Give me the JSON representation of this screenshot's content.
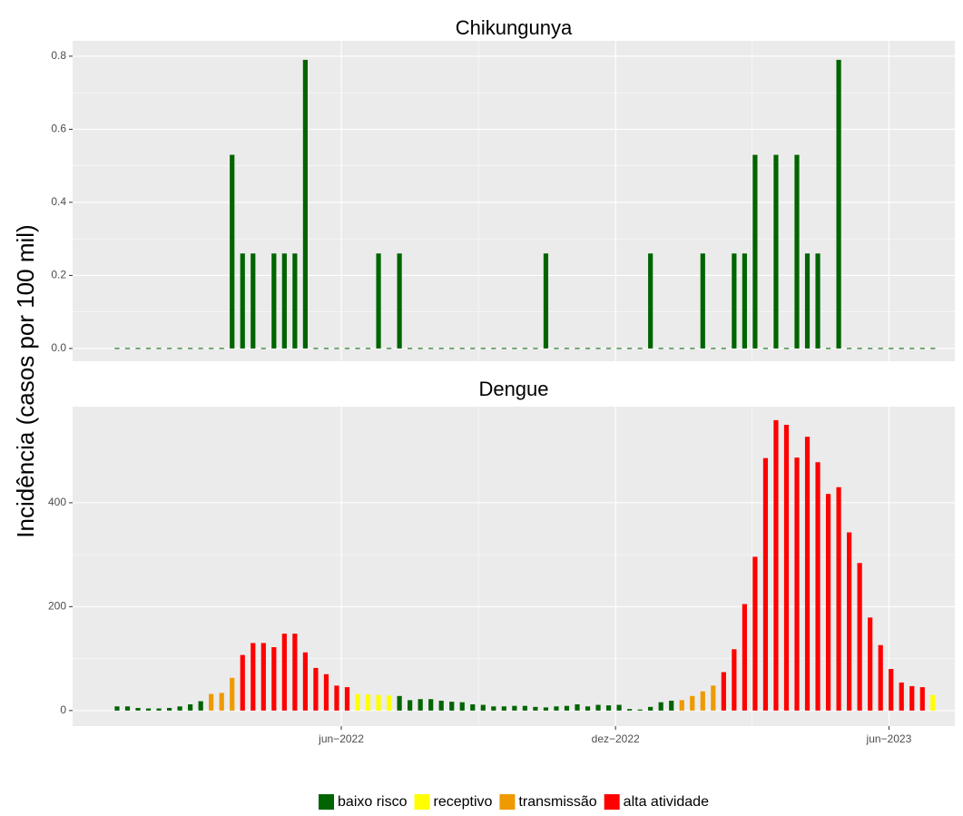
{
  "y_label": "Incidência (casos por 100 mil)",
  "legend": "bottom",
  "chart_data": [
    {
      "type": "bar",
      "title": "Chikungunya",
      "categories": [
        null,
        null,
        null,
        null,
        null,
        null,
        null,
        null,
        null,
        null,
        null,
        null,
        null,
        null,
        null,
        null,
        null,
        null,
        null,
        null,
        null,
        null,
        null,
        null,
        null,
        null,
        null,
        null,
        null,
        null,
        null,
        null,
        null,
        null,
        null,
        null,
        null,
        null,
        null,
        null,
        null,
        null,
        null,
        null,
        null,
        null,
        null,
        null,
        null,
        null,
        null,
        null,
        null,
        null,
        null,
        null,
        null,
        null,
        null,
        null,
        null,
        null,
        null,
        null,
        null,
        null,
        null,
        null,
        null,
        null,
        null,
        null,
        null,
        null,
        null,
        null,
        null,
        null,
        null
      ],
      "xlim": [
        -4.25,
        80.1
      ],
      "ylim": [
        -0.035,
        0.842
      ],
      "yticks": [
        {
          "value": 0,
          "label": "0.0"
        },
        0.2,
        0.4,
        0.6,
        0.8
      ],
      "grid": true,
      "series": [
        {
          "name": "baixo risco",
          "color": "#006400",
          "values": [
            0,
            0,
            0,
            0,
            0,
            0,
            0,
            0,
            0,
            0,
            0,
            0.53,
            0.26,
            0.26,
            0,
            0.26,
            0.26,
            0.26,
            0.79,
            0,
            0,
            0,
            0,
            0,
            0,
            0.26,
            0,
            0.26,
            0,
            0,
            0,
            0,
            0,
            0,
            0,
            0,
            0,
            0,
            0,
            0,
            0,
            0.26,
            0,
            0,
            0,
            0,
            0,
            0,
            0,
            0,
            0,
            0.26,
            0,
            0,
            0,
            0,
            0.26,
            0,
            0,
            0.26,
            0.26,
            0.53,
            0,
            0.53,
            0,
            0.53,
            0.26,
            0.26,
            0,
            0.79,
            0,
            0,
            0,
            0,
            0,
            0,
            0,
            0,
            0
          ]
        }
      ]
    },
    {
      "type": "bar",
      "title": "Dengue",
      "categories": [
        null,
        null,
        null,
        null,
        null,
        null,
        null,
        null,
        null,
        null,
        null,
        null,
        null,
        null,
        null,
        null,
        null,
        null,
        null,
        null,
        null,
        null,
        null,
        null,
        null,
        null,
        null,
        null,
        null,
        null,
        null,
        null,
        null,
        null,
        null,
        null,
        null,
        null,
        null,
        null,
        null,
        null,
        null,
        null,
        null,
        null,
        null,
        null,
        null,
        null,
        null,
        null,
        null,
        null,
        null,
        null,
        null,
        null,
        null,
        null,
        null,
        null,
        null,
        null,
        null,
        null,
        null,
        null,
        null,
        null,
        null,
        null,
        null,
        null,
        null,
        null,
        null,
        null,
        null
      ],
      "xlim": [
        -4.25,
        80.1
      ],
      "xticks": [
        {
          "value": 21.44,
          "label": "jun−2022"
        },
        {
          "value": 47.66,
          "label": "dez−2022"
        },
        {
          "value": 73.8,
          "label": "jun−2023"
        }
      ],
      "ylim": [
        -30,
        585
      ],
      "yticks": [
        0,
        200,
        400
      ],
      "grid": true,
      "series": [
        {
          "name": "baixo risco",
          "color": "#006400",
          "values": [
            8,
            8,
            5,
            4,
            4,
            5,
            8,
            12,
            18,
            null,
            null,
            null,
            null,
            null,
            null,
            null,
            null,
            null,
            null,
            null,
            null,
            null,
            null,
            null,
            null,
            null,
            null,
            28,
            20,
            22,
            22,
            19,
            17,
            16,
            12,
            11,
            8,
            8,
            9,
            9,
            7,
            6,
            8,
            9,
            12,
            8,
            11,
            10,
            11,
            3,
            2,
            7,
            16,
            19,
            null,
            null,
            null,
            null,
            null,
            null,
            null,
            null,
            null,
            null,
            null,
            null,
            null,
            null,
            null,
            null,
            null,
            null,
            null,
            null,
            null,
            null,
            null,
            null,
            null
          ]
        },
        {
          "name": "receptivo",
          "color": "#ffff00",
          "values": [
            null,
            null,
            null,
            null,
            null,
            null,
            null,
            null,
            null,
            null,
            null,
            null,
            null,
            null,
            null,
            null,
            null,
            null,
            null,
            null,
            null,
            null,
            null,
            32,
            31,
            30,
            29,
            null,
            null,
            null,
            null,
            null,
            null,
            null,
            null,
            null,
            null,
            null,
            null,
            null,
            null,
            null,
            null,
            null,
            null,
            null,
            null,
            null,
            null,
            null,
            null,
            null,
            null,
            null,
            null,
            null,
            null,
            null,
            null,
            null,
            null,
            null,
            null,
            null,
            null,
            null,
            null,
            null,
            null,
            null,
            null,
            null,
            null,
            null,
            null,
            null,
            null,
            null,
            30
          ]
        },
        {
          "name": "transmissão",
          "color": "#ee9a00",
          "values": [
            null,
            null,
            null,
            null,
            null,
            null,
            null,
            null,
            null,
            32,
            34,
            63,
            null,
            null,
            null,
            null,
            null,
            null,
            null,
            null,
            null,
            null,
            null,
            null,
            null,
            null,
            null,
            null,
            null,
            null,
            null,
            null,
            null,
            null,
            null,
            null,
            null,
            null,
            null,
            null,
            null,
            null,
            null,
            null,
            null,
            null,
            null,
            null,
            null,
            null,
            null,
            null,
            null,
            null,
            20,
            28,
            37,
            48,
            null,
            null,
            null,
            null,
            null,
            null,
            null,
            null,
            null,
            null,
            null,
            null,
            null,
            null,
            null,
            null,
            null,
            null,
            null,
            null,
            null
          ]
        },
        {
          "name": "alta atividade",
          "color": "#ff0000",
          "values": [
            null,
            null,
            null,
            null,
            null,
            null,
            null,
            null,
            null,
            null,
            null,
            null,
            107,
            130,
            130,
            122,
            148,
            148,
            112,
            82,
            70,
            48,
            45,
            null,
            null,
            null,
            null,
            null,
            null,
            null,
            null,
            null,
            null,
            null,
            null,
            null,
            null,
            null,
            null,
            null,
            null,
            null,
            null,
            null,
            null,
            null,
            null,
            null,
            null,
            null,
            null,
            null,
            null,
            null,
            null,
            null,
            null,
            null,
            74,
            118,
            205,
            296,
            486,
            559,
            550,
            487,
            527,
            478,
            417,
            430,
            343,
            284,
            179,
            126,
            80,
            54,
            47,
            45,
            null
          ]
        }
      ]
    }
  ]
}
